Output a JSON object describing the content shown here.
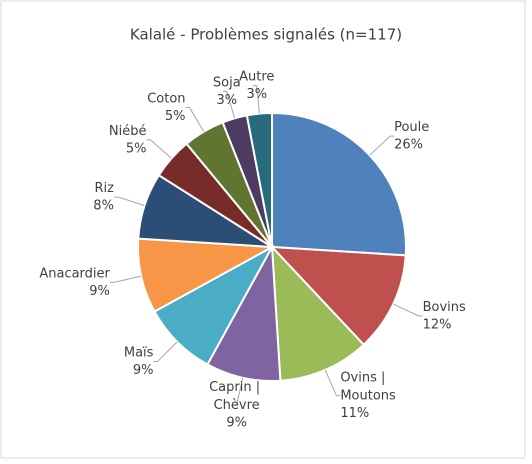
{
  "chart_data": {
    "type": "pie",
    "title": "Kalalé - Problèmes signalés  (n=117)",
    "categories": [
      "Poule",
      "Bovins",
      "Ovins | Moutons",
      "Caprin | Chèvre",
      "Maïs",
      "Anacardier",
      "Riz",
      "Niébé",
      "Coton",
      "Soja",
      "Autre"
    ],
    "values": [
      26,
      12,
      11,
      9,
      9,
      9,
      8,
      5,
      5,
      3,
      3
    ],
    "value_labels": [
      "26%",
      "12%",
      "11%",
      "9%",
      "9%",
      "9%",
      "8%",
      "5%",
      "5%",
      "3%",
      "3%"
    ],
    "colors": [
      "#4f81bd",
      "#c0504d",
      "#9bbb59",
      "#8064a2",
      "#4bacc6",
      "#f79646",
      "#2c4d75",
      "#772c2a",
      "#5f7530",
      "#4d3b62",
      "#276a7c"
    ]
  }
}
